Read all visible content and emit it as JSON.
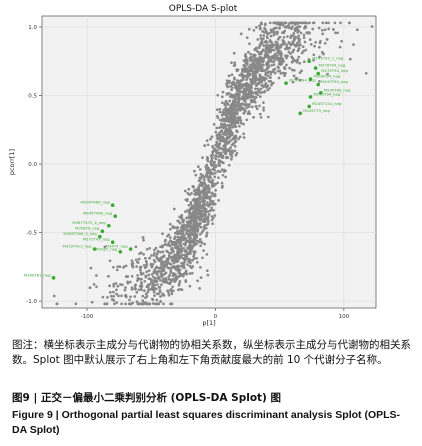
{
  "chart_data": {
    "type": "scatter",
    "title": "OPLS-DA S-plot",
    "xlabel": "p[1]",
    "ylabel": "pcorr[1]",
    "xlim": [
      -135,
      125
    ],
    "ylim": [
      -1.05,
      1.08
    ],
    "xticks": [
      -100,
      0,
      100
    ],
    "yticks": [
      -1.0,
      -0.5,
      0.0,
      0.5,
      1.0
    ],
    "xtick_labels": [
      "-100",
      "0",
      "100"
    ],
    "ytick_labels": [
      "-1.0",
      "-0.5",
      "0.0",
      "0.5",
      "1.0"
    ],
    "grid": true,
    "point_color": "#888888",
    "highlight_color": "#3aa832",
    "background_color": "#f2f2f2",
    "highlighted_points": [
      {
        "label": "M141T93_1_neg",
        "x": 73,
        "y": 0.75
      },
      {
        "label": "M276T94_neg",
        "x": 78,
        "y": 0.7
      },
      {
        "label": "M275T94_neg",
        "x": 80,
        "y": 0.66
      },
      {
        "label": "M208T94_neg",
        "x": 74,
        "y": 0.62
      },
      {
        "label": "M193T94_neg",
        "x": 80,
        "y": 0.58
      },
      {
        "label": "M245T69_neg",
        "x": 82,
        "y": 0.52
      },
      {
        "label": "M291T94_neg",
        "x": 55,
        "y": 0.59
      },
      {
        "label": "M245T94_neg",
        "x": 74,
        "y": 0.49
      },
      {
        "label": "M245T141_neg",
        "x": 73,
        "y": 0.42
      },
      {
        "label": "M245T73_neg",
        "x": 66,
        "y": 0.37
      },
      {
        "label": "M290T469_neg",
        "x": -80,
        "y": -0.3
      },
      {
        "label": "M445T469_neg",
        "x": -78,
        "y": -0.38
      },
      {
        "label": "M367T472_4_neg",
        "x": -83,
        "y": -0.45
      },
      {
        "label": "M358T9_neg",
        "x": -88,
        "y": -0.49
      },
      {
        "label": "M358T369_3_neg",
        "x": -90,
        "y": -0.53
      },
      {
        "label": "M271T43_neg",
        "x": -80,
        "y": -0.57
      },
      {
        "label": "M310T413_neg",
        "x": -94,
        "y": -0.62
      },
      {
        "label": "M347T_neg",
        "x": -66,
        "y": -0.62
      },
      {
        "label": "M108T_neg",
        "x": -74,
        "y": -0.64
      },
      {
        "label": "M280T81_neg",
        "x": -126,
        "y": -0.83
      }
    ],
    "background_points_note": ""
  },
  "caption": {
    "note_cn": "图注：横坐标表示主成分与代谢物的协相关系数，纵坐标表示主成分与代谢物的相关系数。Splot 图中默认展示了右上角和左下角贡献度最大的前 10 个代谢分子名称。",
    "figure_title_cn": "图9 | 正交－偏最小二乘判别分析 (OPLS-DA Splot) 图",
    "figure_title_en": "Figure 9  |  Orthogonal partial least squares discriminant analysis Splot (OPLS-DA Splot)"
  }
}
